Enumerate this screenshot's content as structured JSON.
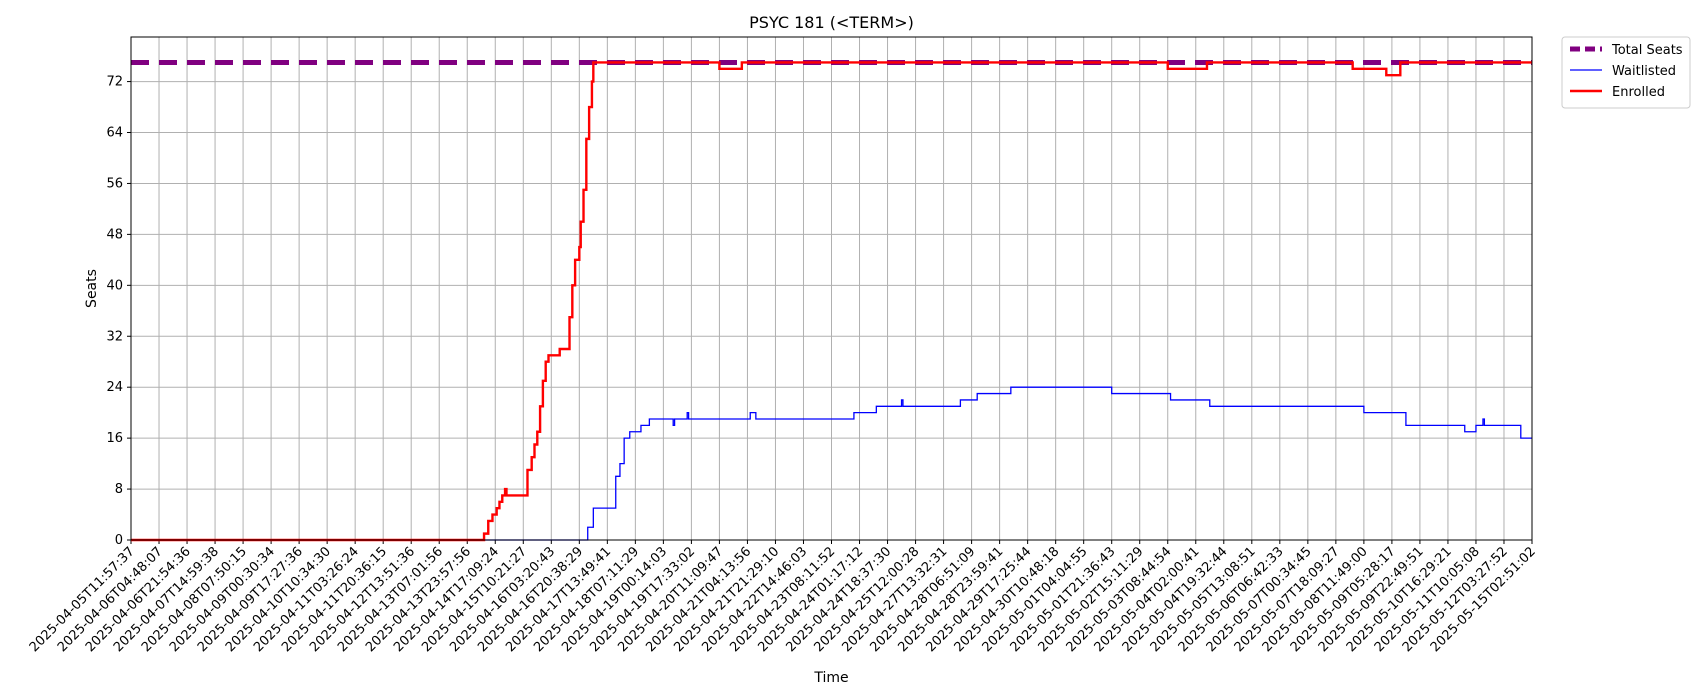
{
  "chart_data": {
    "type": "line",
    "title": "PSYC 181 (<TERM>)",
    "xlabel": "Time",
    "ylabel": "Seats",
    "ylim": [
      0,
      79
    ],
    "yticks": [
      0,
      8,
      16,
      24,
      32,
      40,
      48,
      56,
      64,
      72
    ],
    "grid": true,
    "legend_position": "outside-top-right",
    "x_ticks": [
      "2025-04-05T11:57:37",
      "2025-04-06T04:48:07",
      "2025-04-06T21:54:36",
      "2025-04-07T14:59:38",
      "2025-04-08T07:50:15",
      "2025-04-09T00:30:34",
      "2025-04-09T17:27:36",
      "2025-04-10T10:34:30",
      "2025-04-11T03:26:24",
      "2025-04-11T20:36:15",
      "2025-04-12T13:51:36",
      "2025-04-13T07:01:56",
      "2025-04-13T23:57:56",
      "2025-04-14T17:09:24",
      "2025-04-15T10:21:27",
      "2025-04-16T03:20:43",
      "2025-04-16T20:38:29",
      "2025-04-17T13:49:41",
      "2025-04-18T07:11:29",
      "2025-04-19T00:14:03",
      "2025-04-19T17:33:02",
      "2025-04-20T11:09:47",
      "2025-04-21T04:13:56",
      "2025-04-21T21:29:10",
      "2025-04-22T14:46:03",
      "2025-04-23T08:11:52",
      "2025-04-24T01:17:12",
      "2025-04-24T18:37:30",
      "2025-04-25T12:00:28",
      "2025-04-27T13:32:31",
      "2025-04-28T06:51:09",
      "2025-04-28T23:59:41",
      "2025-04-29T17:25:44",
      "2025-04-30T10:48:18",
      "2025-05-01T04:04:55",
      "2025-05-01T21:36:43",
      "2025-05-02T15:11:29",
      "2025-05-03T08:44:54",
      "2025-05-04T02:00:41",
      "2025-05-04T19:32:44",
      "2025-05-05T13:08:51",
      "2025-05-06T06:42:33",
      "2025-05-07T00:34:45",
      "2025-05-07T18:09:27",
      "2025-05-08T11:49:00",
      "2025-05-09T05:28:17",
      "2025-05-09T22:49:51",
      "2025-05-10T16:29:21",
      "2025-05-11T10:05:08",
      "2025-05-12T03:27:52",
      "2025-05-15T02:51:02"
    ],
    "series": [
      {
        "name": "Total Seats",
        "color": "#800080",
        "style": "dashed",
        "points": [
          [
            0,
            75
          ],
          [
            50,
            75
          ]
        ]
      },
      {
        "name": "Waitlisted",
        "color": "#0000ff",
        "style": "step",
        "points": [
          [
            0,
            0
          ],
          [
            16.2,
            0
          ],
          [
            16.3,
            2
          ],
          [
            16.5,
            5
          ],
          [
            17.1,
            5
          ],
          [
            17.3,
            10
          ],
          [
            17.45,
            12
          ],
          [
            17.6,
            16
          ],
          [
            17.8,
            17
          ],
          [
            18.1,
            17
          ],
          [
            18.2,
            18
          ],
          [
            18.5,
            19
          ],
          [
            19.3,
            19
          ],
          [
            19.35,
            18
          ],
          [
            19.4,
            19
          ],
          [
            19.8,
            19
          ],
          [
            19.85,
            20
          ],
          [
            19.9,
            19
          ],
          [
            21.9,
            19
          ],
          [
            22.1,
            20
          ],
          [
            22.3,
            19
          ],
          [
            25.7,
            19
          ],
          [
            25.8,
            20
          ],
          [
            26.5,
            20
          ],
          [
            26.6,
            21
          ],
          [
            27.45,
            21
          ],
          [
            27.5,
            22
          ],
          [
            27.55,
            21
          ],
          [
            29.5,
            21
          ],
          [
            29.6,
            22
          ],
          [
            30.1,
            22
          ],
          [
            30.2,
            23
          ],
          [
            31.3,
            23
          ],
          [
            31.4,
            24
          ],
          [
            34.9,
            24
          ],
          [
            35.0,
            23
          ],
          [
            37.0,
            23
          ],
          [
            37.1,
            22
          ],
          [
            38.4,
            22
          ],
          [
            38.5,
            21
          ],
          [
            43.9,
            21
          ],
          [
            44.0,
            20
          ],
          [
            45.4,
            20
          ],
          [
            45.5,
            18
          ],
          [
            47.5,
            18
          ],
          [
            47.6,
            17
          ],
          [
            47.9,
            17
          ],
          [
            48.0,
            18
          ],
          [
            48.2,
            18
          ],
          [
            48.25,
            19
          ],
          [
            48.3,
            18
          ],
          [
            49.5,
            18
          ],
          [
            49.6,
            16
          ],
          [
            50,
            16
          ]
        ]
      },
      {
        "name": "Enrolled",
        "color": "#ff0000",
        "style": "step",
        "points": [
          [
            0,
            0
          ],
          [
            12.55,
            0
          ],
          [
            12.6,
            1
          ],
          [
            12.75,
            3
          ],
          [
            12.9,
            4
          ],
          [
            13.05,
            5
          ],
          [
            13.15,
            6
          ],
          [
            13.25,
            7
          ],
          [
            13.35,
            8
          ],
          [
            13.4,
            7
          ],
          [
            14.0,
            7
          ],
          [
            14.1,
            7
          ],
          [
            14.15,
            11
          ],
          [
            14.3,
            13
          ],
          [
            14.4,
            15
          ],
          [
            14.5,
            17
          ],
          [
            14.6,
            21
          ],
          [
            14.7,
            25
          ],
          [
            14.8,
            28
          ],
          [
            14.9,
            29
          ],
          [
            15.2,
            29
          ],
          [
            15.3,
            30
          ],
          [
            15.6,
            30
          ],
          [
            15.65,
            35
          ],
          [
            15.75,
            40
          ],
          [
            15.85,
            44
          ],
          [
            16.0,
            46
          ],
          [
            16.05,
            50
          ],
          [
            16.15,
            55
          ],
          [
            16.25,
            63
          ],
          [
            16.35,
            68
          ],
          [
            16.45,
            72
          ],
          [
            16.5,
            75
          ],
          [
            20.9,
            75
          ],
          [
            21.0,
            74
          ],
          [
            21.7,
            74
          ],
          [
            21.8,
            75
          ],
          [
            36.9,
            75
          ],
          [
            37.0,
            74
          ],
          [
            38.3,
            74
          ],
          [
            38.4,
            75
          ],
          [
            43.5,
            75
          ],
          [
            43.6,
            74
          ],
          [
            44.7,
            74
          ],
          [
            44.8,
            73
          ],
          [
            45.2,
            73
          ],
          [
            45.3,
            75
          ],
          [
            50,
            75
          ]
        ]
      }
    ]
  }
}
